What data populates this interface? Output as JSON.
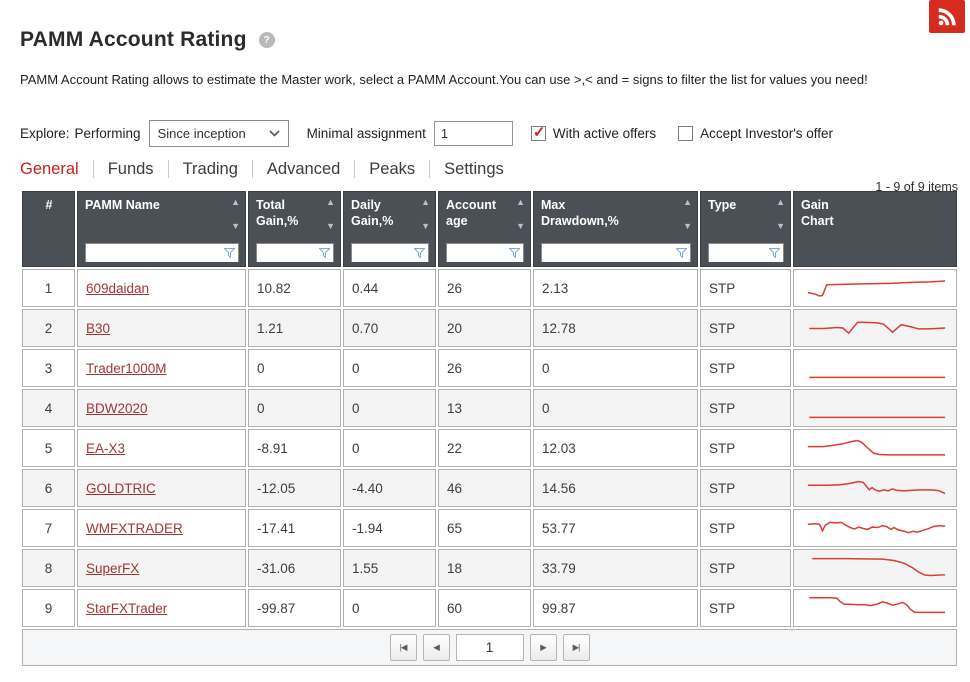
{
  "page": {
    "title": "PAMM Account Rating",
    "description": "PAMM Account Rating allows to estimate the Master work, select a PAMM Account.You can use >,< and = signs to filter the list for values you need!"
  },
  "icons": {
    "help": "?",
    "sort_asc": "▲",
    "sort_desc": "▼",
    "chevron_down": "▾",
    "pager_first": "|◀",
    "pager_prev": "◀",
    "pager_next": "▶",
    "pager_last": "▶|"
  },
  "colors": {
    "accent_red": "#c8201d",
    "link_red": "#a63434",
    "sparkline_red": "#dd3b35",
    "header_bg": "#4a5056",
    "rss_red": "#d62b1f",
    "funnel_blue": "#7aa9d6"
  },
  "filters": {
    "explore_label": "Explore:",
    "performing_label": "Performing",
    "period_selected": "Since inception",
    "minimal_assignment_label": "Minimal assignment",
    "minimal_assignment_value": "1",
    "with_active_offers_label": "With active offers",
    "with_active_offers_checked": true,
    "accept_investors_offer_label": "Accept Investor's offer",
    "accept_investors_offer_checked": false
  },
  "tabs": [
    {
      "label": "General",
      "active": true
    },
    {
      "label": "Funds",
      "active": false
    },
    {
      "label": "Trading",
      "active": false
    },
    {
      "label": "Advanced",
      "active": false
    },
    {
      "label": "Peaks",
      "active": false
    },
    {
      "label": "Settings",
      "active": false
    }
  ],
  "items_count_label": "1 - 9 of 9 items",
  "table": {
    "columns": [
      {
        "line1": "#",
        "line2": "",
        "sortable": false,
        "filterable": false
      },
      {
        "line1": "PAMM Name",
        "line2": "",
        "sortable": true,
        "filterable": true
      },
      {
        "line1": "Total",
        "line2": "Gain,%",
        "sortable": true,
        "filterable": true
      },
      {
        "line1": "Daily",
        "line2": "Gain,%",
        "sortable": true,
        "filterable": true
      },
      {
        "line1": "Account",
        "line2": "age",
        "sortable": true,
        "filterable": true
      },
      {
        "line1": "Max",
        "line2": "Drawdown,%",
        "sortable": true,
        "filterable": true
      },
      {
        "line1": "Type",
        "line2": "",
        "sortable": true,
        "filterable": true
      },
      {
        "line1": "Gain",
        "line2": "Chart",
        "sortable": false,
        "filterable": false
      }
    ],
    "rows": [
      {
        "num": "1",
        "name": "609daidan",
        "total_gain": "10.82",
        "daily_gain": "0.44",
        "age": "26",
        "max_drawdown": "2.13",
        "type": "STP"
      },
      {
        "num": "2",
        "name": "B30",
        "total_gain": "1.21",
        "daily_gain": "0.70",
        "age": "20",
        "max_drawdown": "12.78",
        "type": "STP"
      },
      {
        "num": "3",
        "name": "Trader1000M",
        "total_gain": "0",
        "daily_gain": "0",
        "age": "26",
        "max_drawdown": "0",
        "type": "STP"
      },
      {
        "num": "4",
        "name": "BDW2020",
        "total_gain": "0",
        "daily_gain": "0",
        "age": "13",
        "max_drawdown": "0",
        "type": "STP"
      },
      {
        "num": "5",
        "name": "EA-X3",
        "total_gain": "-8.91",
        "daily_gain": "0",
        "age": "22",
        "max_drawdown": "12.03",
        "type": "STP"
      },
      {
        "num": "6",
        "name": "GOLDTRIC",
        "total_gain": "-12.05",
        "daily_gain": "-4.40",
        "age": "46",
        "max_drawdown": "14.56",
        "type": "STP"
      },
      {
        "num": "7",
        "name": "WMFXTRADER",
        "total_gain": "-17.41",
        "daily_gain": "-1.94",
        "age": "65",
        "max_drawdown": "53.77",
        "type": "STP"
      },
      {
        "num": "8",
        "name": "SuperFX",
        "total_gain": "-31.06",
        "daily_gain": "1.55",
        "age": "18",
        "max_drawdown": "33.79",
        "type": "STP"
      },
      {
        "num": "9",
        "name": "StarFXTrader",
        "total_gain": "-99.87",
        "daily_gain": "0",
        "age": "60",
        "max_drawdown": "99.87",
        "type": "STP"
      }
    ]
  },
  "chart_data": [
    {
      "name": "609daidan",
      "type": "line",
      "color": "#dd3b35",
      "points": [
        [
          4,
          20
        ],
        [
          9,
          21.5
        ],
        [
          12,
          23.5
        ],
        [
          14,
          23
        ],
        [
          17,
          11.5
        ],
        [
          30,
          11
        ],
        [
          45,
          10.5
        ],
        [
          60,
          10
        ],
        [
          75,
          9
        ],
        [
          88,
          8.5
        ],
        [
          98,
          7.5
        ]
      ]
    },
    {
      "name": "B30",
      "type": "line",
      "color": "#dd3b35",
      "points": [
        [
          5,
          15.5
        ],
        [
          15,
          15.5
        ],
        [
          24,
          14.5
        ],
        [
          28,
          15
        ],
        [
          32,
          20.5
        ],
        [
          38,
          9
        ],
        [
          44,
          9
        ],
        [
          52,
          9.5
        ],
        [
          56,
          11
        ],
        [
          62,
          19.5
        ],
        [
          68,
          11.5
        ],
        [
          74,
          13.5
        ],
        [
          80,
          16
        ],
        [
          86,
          16
        ],
        [
          92,
          15.5
        ],
        [
          98,
          15
        ]
      ]
    },
    {
      "name": "Trader1000M",
      "type": "line",
      "color": "#dd3b35",
      "points": [
        [
          5,
          25
        ],
        [
          98,
          25
        ]
      ]
    },
    {
      "name": "BDW2020",
      "type": "line",
      "color": "#dd3b35",
      "points": [
        [
          5,
          25
        ],
        [
          98,
          25
        ]
      ]
    },
    {
      "name": "EA-X3",
      "type": "line",
      "color": "#dd3b35",
      "points": [
        [
          4,
          13.5
        ],
        [
          14,
          13.5
        ],
        [
          20,
          12.5
        ],
        [
          28,
          10.5
        ],
        [
          34,
          8
        ],
        [
          38,
          7
        ],
        [
          41,
          9
        ],
        [
          45,
          15
        ],
        [
          49,
          20.5
        ],
        [
          53,
          22
        ],
        [
          60,
          22.3
        ],
        [
          98,
          22.3
        ]
      ]
    },
    {
      "name": "GOLDTRIC",
      "type": "line",
      "color": "#dd3b35",
      "points": [
        [
          4,
          12
        ],
        [
          18,
          12
        ],
        [
          26,
          11.5
        ],
        [
          33,
          10
        ],
        [
          39,
          8
        ],
        [
          42,
          9
        ],
        [
          44,
          13
        ],
        [
          46,
          17
        ],
        [
          48,
          14.5
        ],
        [
          50,
          17
        ],
        [
          53,
          18.5
        ],
        [
          56,
          17
        ],
        [
          59,
          18
        ],
        [
          62,
          16
        ],
        [
          65,
          17.5
        ],
        [
          70,
          18
        ],
        [
          75,
          17.5
        ],
        [
          80,
          17
        ],
        [
          85,
          17
        ],
        [
          90,
          17.2
        ],
        [
          94,
          18
        ],
        [
          98,
          21
        ]
      ]
    },
    {
      "name": "WMFXTRADER",
      "type": "line",
      "color": "#dd3b35",
      "points": [
        [
          4,
          11
        ],
        [
          9,
          10.5
        ],
        [
          12,
          11
        ],
        [
          14,
          18
        ],
        [
          16,
          12
        ],
        [
          19,
          9
        ],
        [
          23,
          9.5
        ],
        [
          27,
          9
        ],
        [
          30,
          12
        ],
        [
          33,
          14.5
        ],
        [
          36,
          16
        ],
        [
          39,
          14
        ],
        [
          42,
          15.5
        ],
        [
          45,
          16.5
        ],
        [
          48,
          14
        ],
        [
          52,
          14.5
        ],
        [
          55,
          12.5
        ],
        [
          58,
          13.5
        ],
        [
          61,
          16.5
        ],
        [
          63,
          14.5
        ],
        [
          66,
          17
        ],
        [
          70,
          18.5
        ],
        [
          73,
          20
        ],
        [
          76,
          18.5
        ],
        [
          79,
          19.5
        ],
        [
          83,
          17.5
        ],
        [
          86,
          16
        ],
        [
          90,
          13.5
        ],
        [
          94,
          12.5
        ],
        [
          98,
          13
        ]
      ]
    },
    {
      "name": "SuperFX",
      "type": "line",
      "color": "#dd3b35",
      "points": [
        [
          7,
          5
        ],
        [
          30,
          5
        ],
        [
          55,
          5.5
        ],
        [
          63,
          7
        ],
        [
          70,
          10
        ],
        [
          76,
          15
        ],
        [
          80,
          19.5
        ],
        [
          84,
          22.5
        ],
        [
          88,
          23
        ],
        [
          93,
          22.7
        ],
        [
          98,
          22.3
        ]
      ]
    },
    {
      "name": "StarFXTrader",
      "type": "line",
      "color": "#dd3b35",
      "points": [
        [
          5,
          4
        ],
        [
          20,
          4
        ],
        [
          24,
          4.5
        ],
        [
          26,
          8
        ],
        [
          29,
          11
        ],
        [
          33,
          11
        ],
        [
          38,
          11.5
        ],
        [
          43,
          11.5
        ],
        [
          47,
          12.5
        ],
        [
          51,
          11
        ],
        [
          55,
          8.5
        ],
        [
          58,
          9.5
        ],
        [
          62,
          12
        ],
        [
          66,
          10.5
        ],
        [
          69,
          9
        ],
        [
          72,
          12
        ],
        [
          74,
          16
        ],
        [
          77,
          19.5
        ],
        [
          82,
          19.7
        ],
        [
          98,
          19.7
        ]
      ]
    }
  ],
  "pagination": {
    "current_page": "1"
  }
}
